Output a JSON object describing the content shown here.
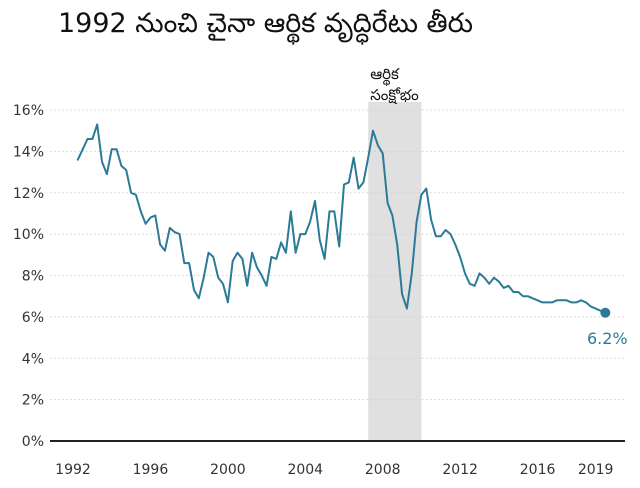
{
  "title": "1992 నుంచి చైనా ఆర్థిక వృద్ధిరేటు తీరు",
  "colors": {
    "line": "#2b7a98",
    "band": "#e0e0e0",
    "grid": "#d0d0d0",
    "axis": "#222222",
    "end_label": "#2b7a98"
  },
  "chart_data": {
    "type": "line",
    "title": "1992 నుంచి చైనా ఆర్థిక వృద్ధిరేటు తీరు",
    "xlabel": "",
    "ylabel": "",
    "ylim": [
      0,
      16
    ],
    "yticks": [
      0,
      2,
      4,
      6,
      8,
      10,
      12,
      14,
      16
    ],
    "ytick_labels": [
      "0%",
      "2%",
      "4%",
      "6%",
      "8%",
      "10%",
      "12%",
      "14%",
      "16%"
    ],
    "xlim": [
      1992.0,
      2020.0
    ],
    "xticks": [
      1992,
      1996,
      2000,
      2004,
      2008,
      2012,
      2016,
      2019
    ],
    "xtick_labels": [
      "1992",
      "1996",
      "2000",
      "2004",
      "2008",
      "2012",
      "2016",
      "2019"
    ],
    "grid": true,
    "shaded_band": {
      "x_start": 2007.25,
      "x_end": 2010.0,
      "label_lines": [
        "ఆర్థిక",
        "సంక్షోభం"
      ]
    },
    "end_label": "6.2%",
    "series": [
      {
        "x": [
          1992.25,
          1992.5,
          1992.75,
          1993.0,
          1993.25,
          1993.5,
          1993.75,
          1994.0,
          1994.25,
          1994.5,
          1994.75,
          1995.0,
          1995.25,
          1995.5,
          1995.75,
          1996.0,
          1996.25,
          1996.5,
          1996.75,
          1997.0,
          1997.25,
          1997.5,
          1997.75,
          1998.0,
          1998.25,
          1998.5,
          1998.75,
          1999.0,
          1999.25,
          1999.5,
          1999.75,
          2000.0,
          2000.25,
          2000.5,
          2000.75,
          2001.0,
          2001.25,
          2001.5,
          2001.75,
          2002.0,
          2002.25,
          2002.5,
          2002.75,
          2003.0,
          2003.25,
          2003.5,
          2003.75,
          2004.0,
          2004.25,
          2004.5,
          2004.75,
          2005.0,
          2005.25,
          2005.5,
          2005.75,
          2006.0,
          2006.25,
          2006.5,
          2006.75,
          2007.0,
          2007.25,
          2007.5,
          2007.75,
          2008.0,
          2008.25,
          2008.5,
          2008.75,
          2009.0,
          2009.25,
          2009.5,
          2009.75,
          2010.0,
          2010.25,
          2010.5,
          2010.75,
          2011.0,
          2011.25,
          2011.5,
          2011.75,
          2012.0,
          2012.25,
          2012.5,
          2012.75,
          2013.0,
          2013.25,
          2013.5,
          2013.75,
          2014.0,
          2014.25,
          2014.5,
          2014.75,
          2015.0,
          2015.25,
          2015.5,
          2015.75,
          2016.0,
          2016.25,
          2016.5,
          2016.75,
          2017.0,
          2017.25,
          2017.5,
          2017.75,
          2018.0,
          2018.25,
          2018.5,
          2018.75,
          2019.0,
          2019.25,
          2019.5
        ],
        "values": [
          13.6,
          14.1,
          14.6,
          14.6,
          15.3,
          13.5,
          12.9,
          14.1,
          14.1,
          13.3,
          13.1,
          12.0,
          11.9,
          11.1,
          10.5,
          10.8,
          10.9,
          9.5,
          9.2,
          10.3,
          10.1,
          10.0,
          8.6,
          8.6,
          7.3,
          6.9,
          7.9,
          9.1,
          8.9,
          7.9,
          7.6,
          6.7,
          8.7,
          9.1,
          8.8,
          7.5,
          9.1,
          8.4,
          8.0,
          7.5,
          8.9,
          8.8,
          9.6,
          9.1,
          11.1,
          9.1,
          10.0,
          10.0,
          10.6,
          11.6,
          9.7,
          8.8,
          11.1,
          11.1,
          9.4,
          12.4,
          12.5,
          13.7,
          12.2,
          12.5,
          13.7,
          15.0,
          14.3,
          13.9,
          11.5,
          10.9,
          9.5,
          7.1,
          6.4,
          8.1,
          10.6,
          11.9,
          12.2,
          10.7,
          9.9,
          9.9,
          10.2,
          10.0,
          9.5,
          8.9,
          8.1,
          7.6,
          7.5,
          8.1,
          7.9,
          7.6,
          7.9,
          7.7,
          7.4,
          7.5,
          7.2,
          7.2,
          7.0,
          7.0,
          6.9,
          6.8,
          6.7,
          6.7,
          6.7,
          6.8,
          6.8,
          6.8,
          6.7,
          6.7,
          6.8,
          6.7,
          6.5,
          6.4,
          6.3,
          6.2
        ]
      }
    ]
  }
}
